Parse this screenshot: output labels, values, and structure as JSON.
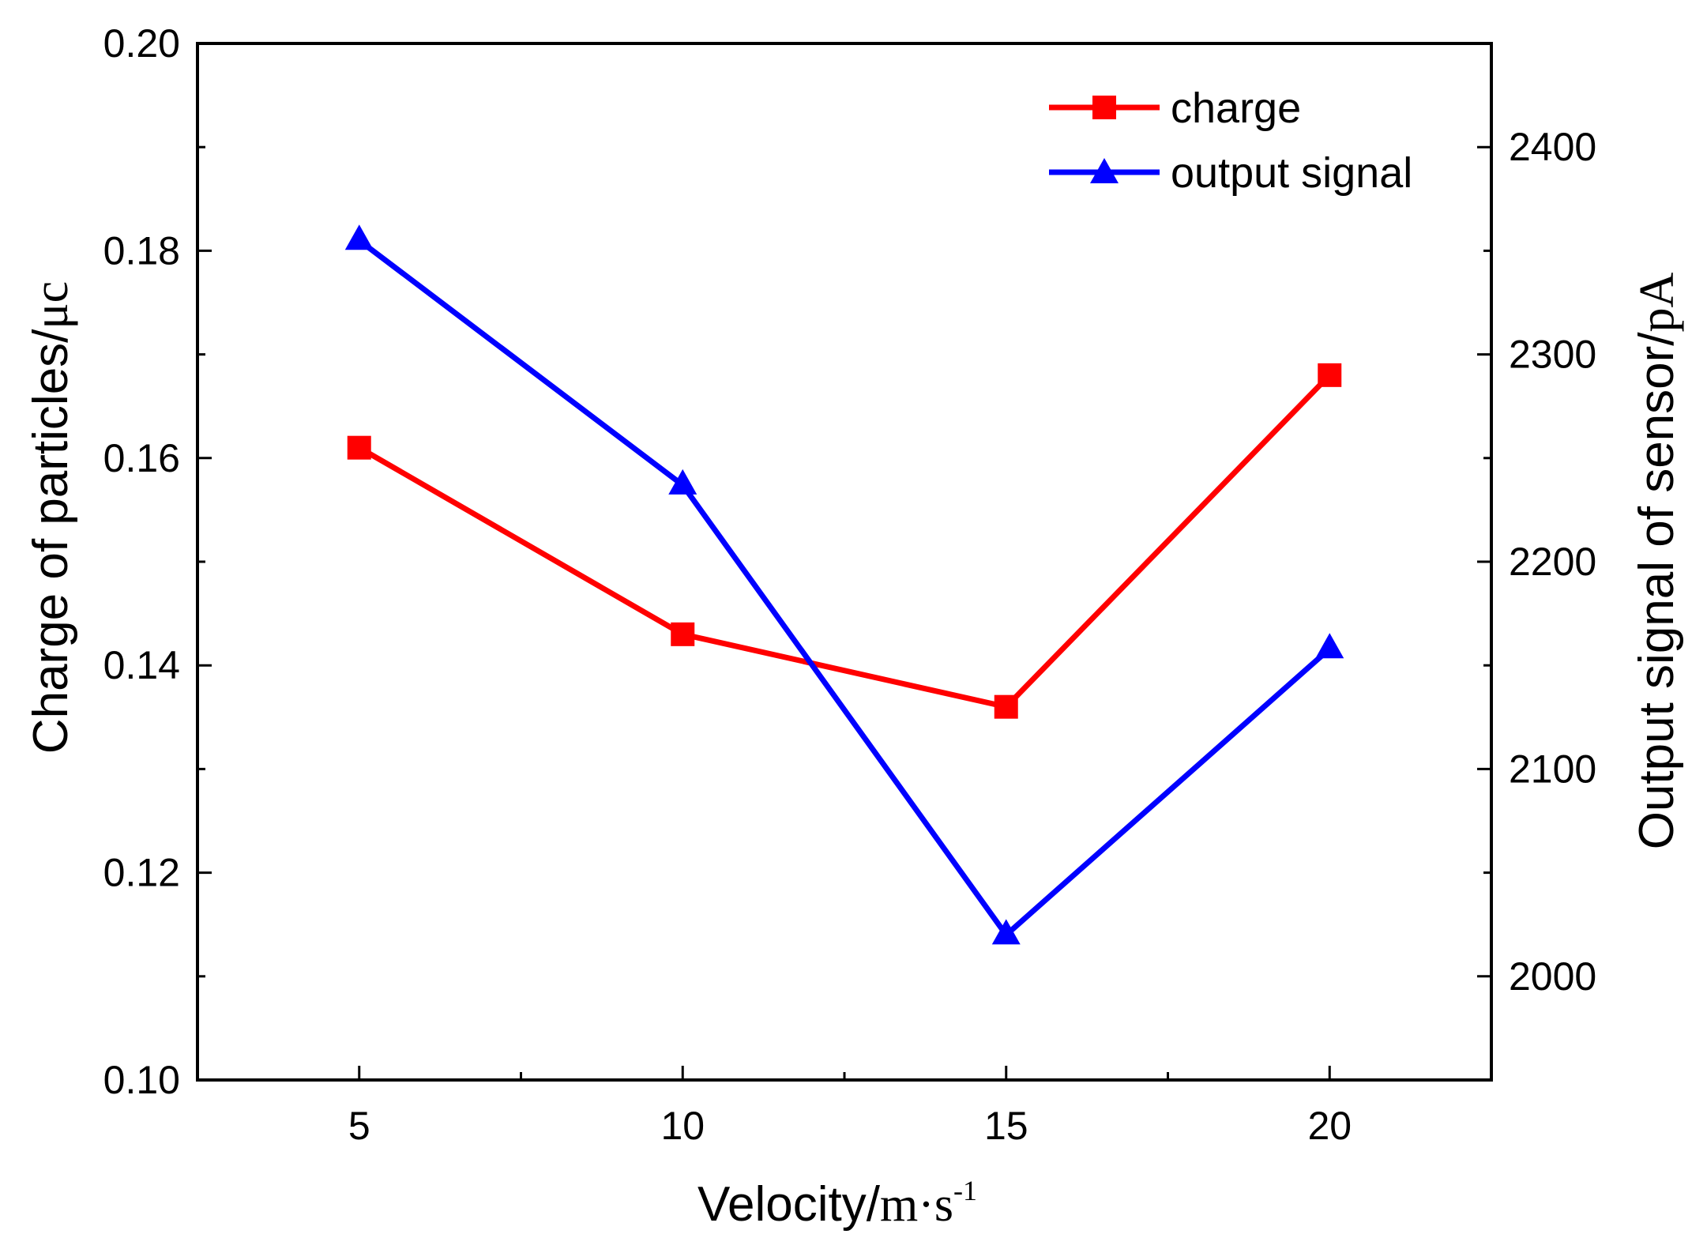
{
  "chart_data": {
    "type": "line",
    "x": [
      5,
      10,
      15,
      20
    ],
    "x_ticks": [
      "5",
      "10",
      "15",
      "20"
    ],
    "xlim": [
      2.5,
      22.5
    ],
    "xlabel": {
      "main": "Velocity/",
      "unit": "m·s",
      "sup": "-1"
    },
    "left_axis": {
      "label": {
        "main": "Charge of particles/",
        "unit": "μc"
      },
      "ylim": [
        0.1,
        0.2
      ],
      "ticks": [
        "0.10",
        "0.12",
        "0.14",
        "0.16",
        "0.18",
        "0.20"
      ]
    },
    "right_axis": {
      "label": {
        "main": "Output signal of sensor/",
        "unit": "pA"
      },
      "ylim": [
        1950,
        2450
      ],
      "ticks": [
        "2000",
        "2100",
        "2200",
        "2300",
        "2400"
      ]
    },
    "series": [
      {
        "name": "charge",
        "axis": "left",
        "marker": "square",
        "color": "#ff0000",
        "values": [
          0.161,
          0.143,
          0.136,
          0.168
        ]
      },
      {
        "name": "output signal",
        "axis": "right",
        "marker": "triangle",
        "color": "#0000ff",
        "values": [
          2355,
          2237,
          2020,
          2158
        ]
      }
    ],
    "legend": "top-right"
  }
}
